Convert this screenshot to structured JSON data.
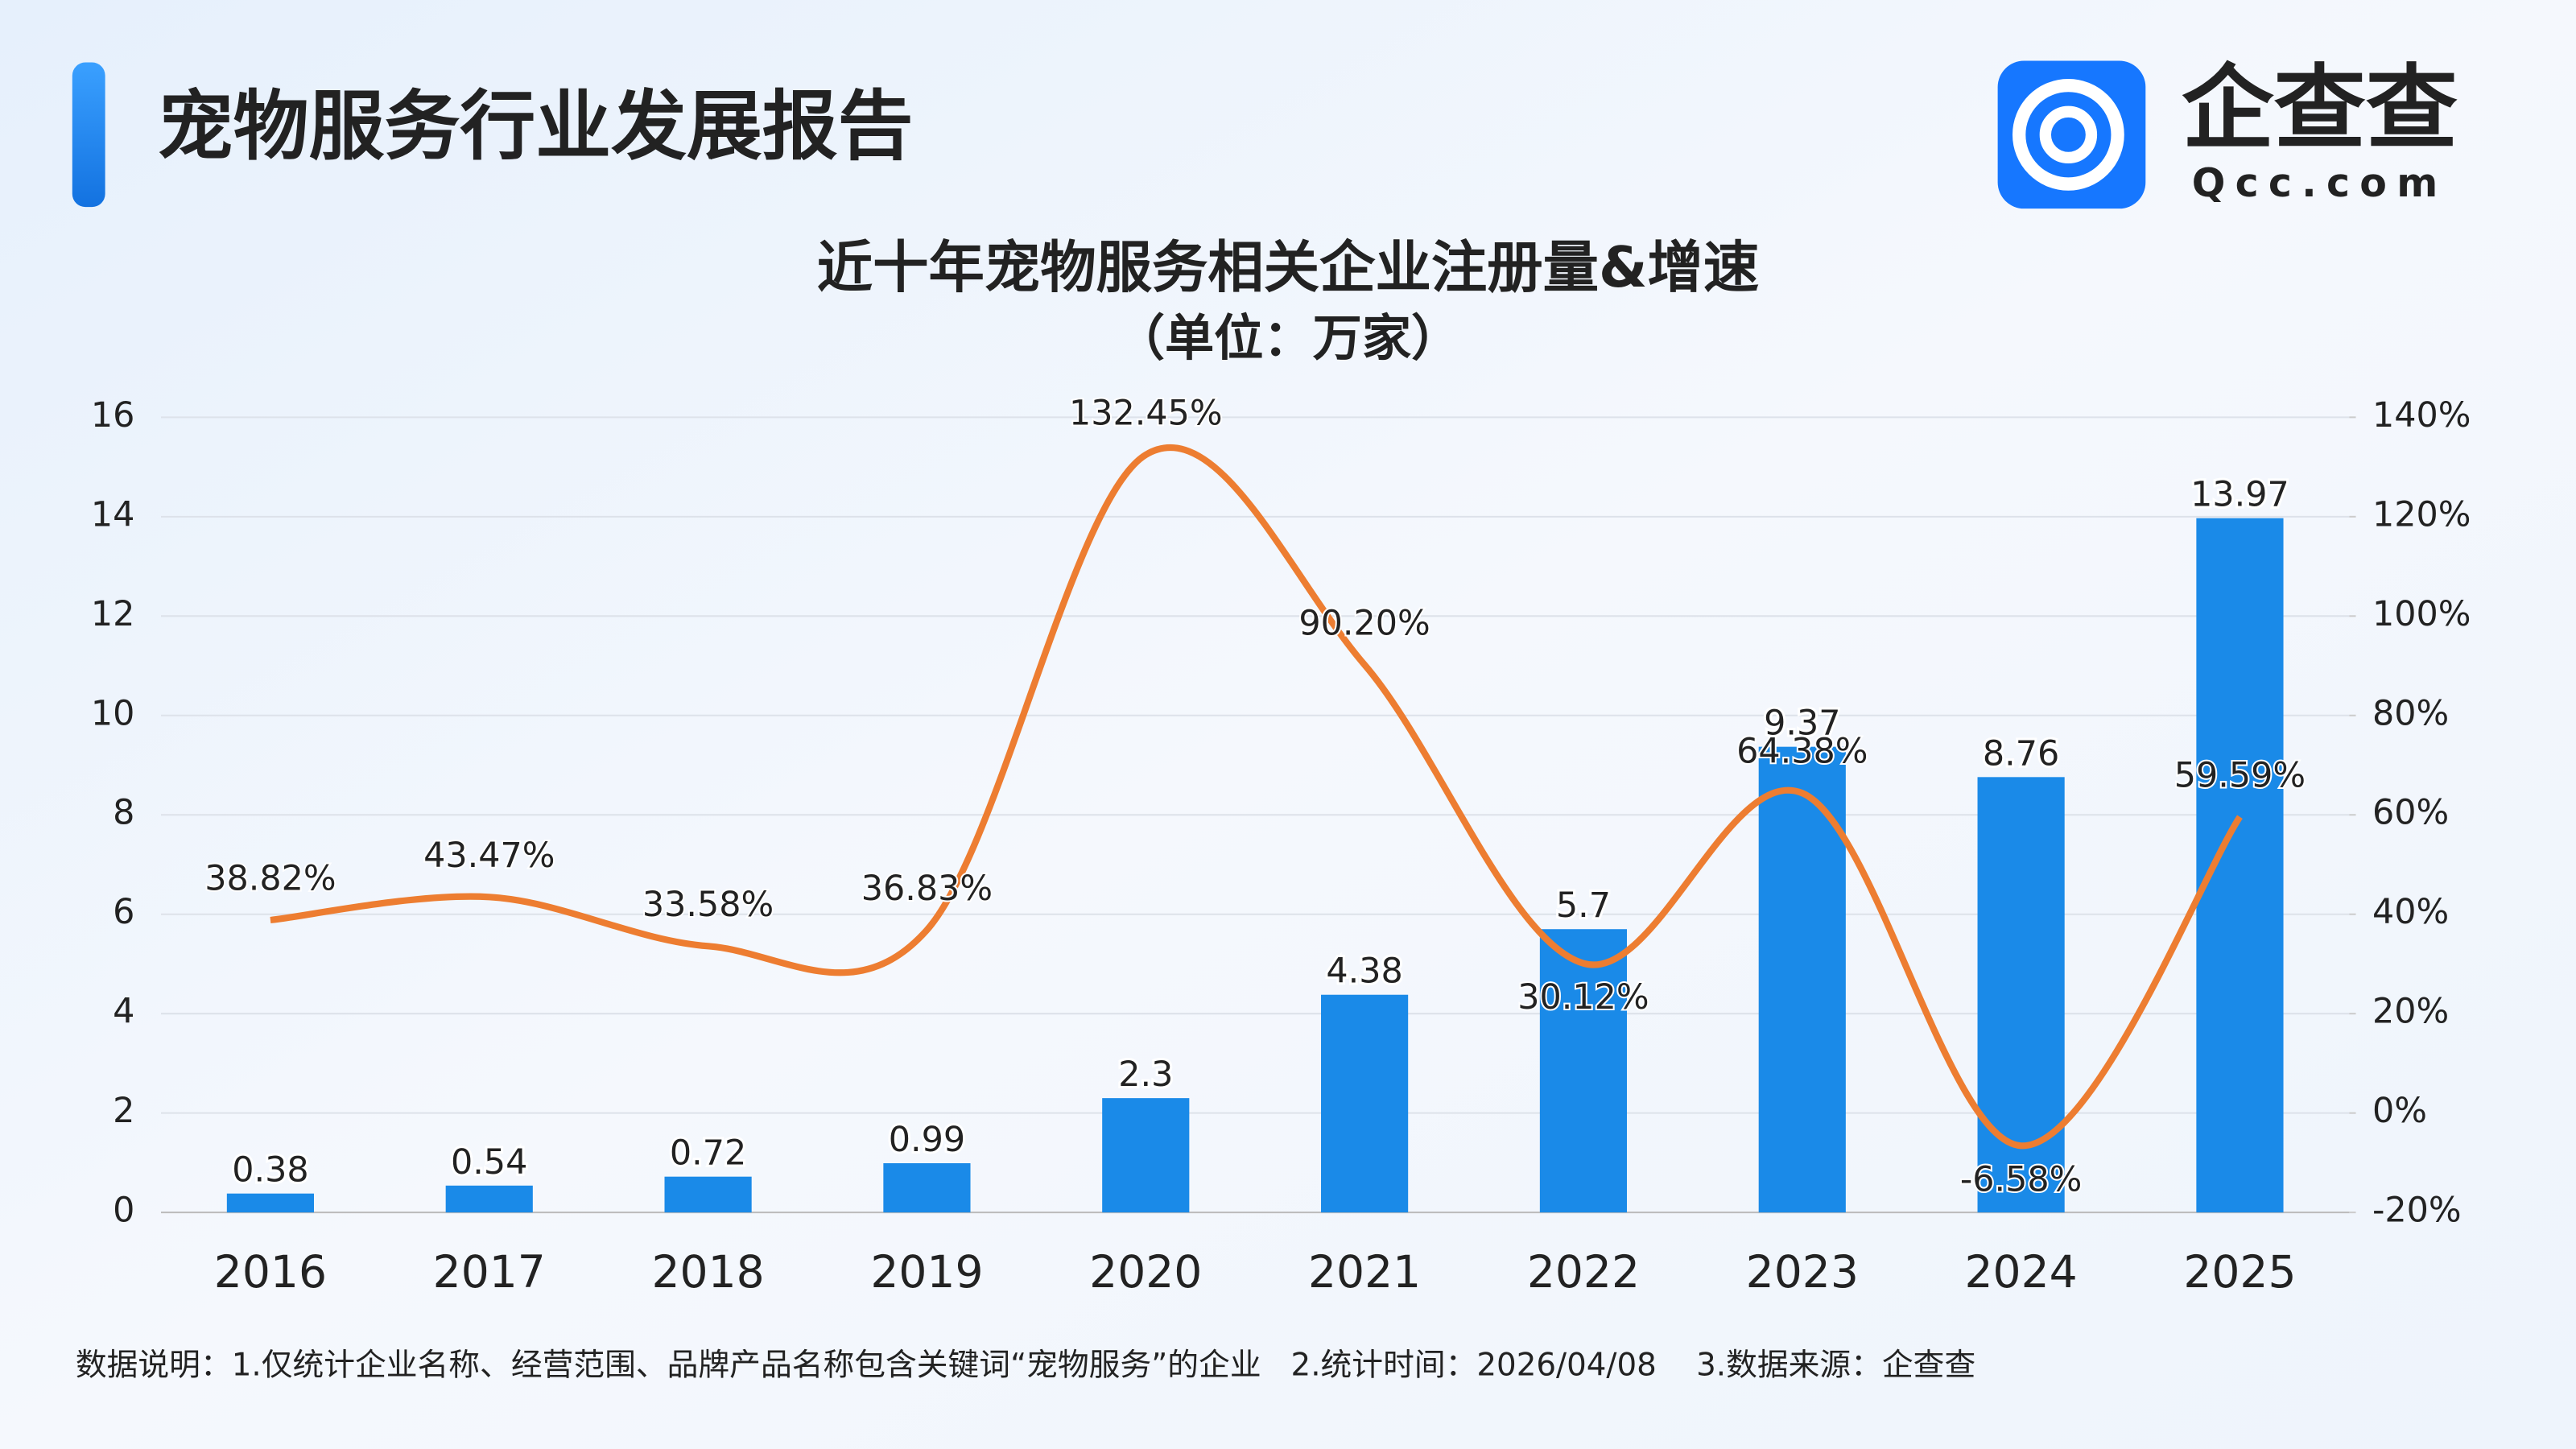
{
  "header": {
    "title": "宠物服务行业发展报告",
    "logo_text": "企查查",
    "logo_domain": "Qcc.com"
  },
  "chart_data": {
    "type": "bar-line",
    "title": "近十年宠物服务相关企业注册量&增速",
    "subtitle": "（单位：万家）",
    "categories": [
      "2016",
      "2017",
      "2018",
      "2019",
      "2020",
      "2021",
      "2022",
      "2023",
      "2024",
      "2025"
    ],
    "series": [
      {
        "type": "bar",
        "color": "#1a8ae8",
        "values": [
          0.38,
          0.54,
          0.72,
          0.99,
          2.3,
          4.38,
          5.7,
          9.37,
          8.76,
          13.97
        ]
      },
      {
        "type": "line",
        "axis": "y2",
        "color": "#ed7d31",
        "values": [
          38.82,
          43.47,
          33.58,
          36.83,
          132.45,
          90.2,
          30.12,
          64.38,
          -6.58,
          59.59
        ],
        "value_labels": [
          "38.82%",
          "43.47%",
          "33.58%",
          "36.83%",
          "132.45%",
          "90.20%",
          "30.12%",
          "64.38%",
          "-6.58%",
          "59.59%"
        ]
      }
    ],
    "ylim": [
      0,
      16
    ],
    "yticks": [
      0,
      2,
      4,
      6,
      8,
      10,
      12,
      14,
      16
    ],
    "y2lim": [
      -20,
      140
    ],
    "y2ticks": [
      {
        "value": -20,
        "label": "-20%"
      },
      {
        "value": 0,
        "label": "0%"
      },
      {
        "value": 20,
        "label": "20%"
      },
      {
        "value": 40,
        "label": "40%"
      },
      {
        "value": 60,
        "label": "60%"
      },
      {
        "value": 80,
        "label": "80%"
      },
      {
        "value": 100,
        "label": "100%"
      },
      {
        "value": 120,
        "label": "120%"
      },
      {
        "value": 140,
        "label": "140%"
      }
    ],
    "grid": true
  },
  "footnote": "数据说明：1.仅统计企业名称、经营范围、品牌产品名称包含关键词“宠物服务”的企业   2.统计时间：2026/04/08    3.数据来源：企查查"
}
